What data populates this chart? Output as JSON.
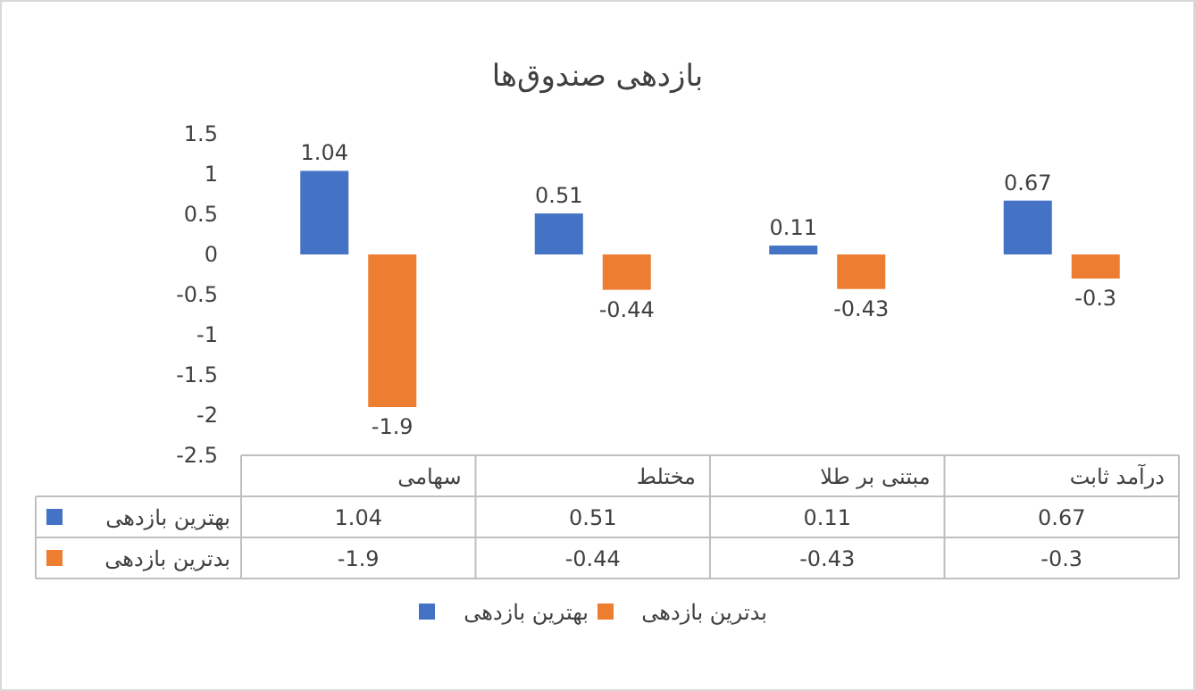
{
  "chart_data": {
    "type": "bar",
    "title": "بازدهی صندوق‌ها",
    "categories": [
      "سهامی",
      "مختلط",
      "مبتنی بر طلا",
      "درآمد ثابت"
    ],
    "series": [
      {
        "name": "بهترین بازدهی",
        "color": "#4472c4",
        "values": [
          1.04,
          0.51,
          0.11,
          0.67
        ],
        "value_labels": [
          "1.04",
          "0.51",
          "0.11",
          "0.67"
        ]
      },
      {
        "name": "بدترین بازدهی",
        "color": "#ed7d31",
        "values": [
          -1.9,
          -0.44,
          -0.43,
          -0.3
        ],
        "value_labels": [
          "-1.9",
          "-0.44",
          "-0.43",
          "-0.3"
        ]
      }
    ],
    "ylim": [
      -2.5,
      1.5
    ],
    "yticks": [
      -2.5,
      -2,
      -1.5,
      -1,
      -0.5,
      0,
      0.5,
      1,
      1.5
    ],
    "annotations": [
      "1.04",
      "0.51",
      "0.11",
      "0.67",
      "-1.9",
      "-0.44",
      "-0.43",
      "-0.3"
    ],
    "data_labels": true,
    "legend": "bottom"
  }
}
